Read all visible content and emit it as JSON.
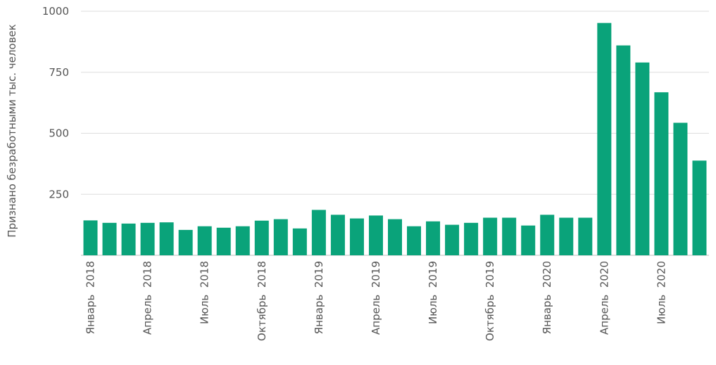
{
  "chart_data": {
    "type": "bar",
    "ylabel": "Признано безработными тыс. человек",
    "ylim": [
      0,
      1000
    ],
    "yticks": [
      250,
      500,
      750,
      1000
    ],
    "grid": true,
    "bar_color": "#0aa37a",
    "categories": [
      "Январь 2018",
      "Февраль 2018",
      "Март 2018",
      "Апрель 2018",
      "Май 2018",
      "Июнь 2018",
      "Июль 2018",
      "Август 2018",
      "Сентябрь 2018",
      "Октябрь 2018",
      "Ноябрь 2018",
      "Декабрь 2018",
      "Январь 2019",
      "Февраль 2019",
      "Март 2019",
      "Апрель 2019",
      "Май 2019",
      "Июнь 2019",
      "Июль 2019",
      "Август 2019",
      "Сентябрь 2019",
      "Октябрь 2019",
      "Ноябрь 2019",
      "Декабрь 2019",
      "Январь 2020",
      "Февраль 2020",
      "Март 2020",
      "Апрель 2020",
      "Май 2020",
      "Июнь 2020",
      "Июль 2020",
      "Август 2020",
      "Сентябрь 2020"
    ],
    "values": [
      143,
      133,
      130,
      133,
      135,
      104,
      119,
      113,
      119,
      142,
      148,
      110,
      186,
      166,
      151,
      163,
      148,
      119,
      139,
      125,
      133,
      154,
      154,
      122,
      166,
      154,
      154,
      952,
      860,
      790,
      668,
      543,
      388
    ],
    "xtick_labels": [
      {
        "index": 0,
        "label": "Январь  2018"
      },
      {
        "index": 3,
        "label": "Апрель  2018"
      },
      {
        "index": 6,
        "label": "Июль  2018"
      },
      {
        "index": 9,
        "label": "Октябрь  2018"
      },
      {
        "index": 12,
        "label": "Январь  2019"
      },
      {
        "index": 15,
        "label": "Апрель  2019"
      },
      {
        "index": 18,
        "label": "Июль  2019"
      },
      {
        "index": 21,
        "label": "Октябрь  2019"
      },
      {
        "index": 24,
        "label": "Январь  2020"
      },
      {
        "index": 27,
        "label": "Апрель  2020"
      },
      {
        "index": 30,
        "label": "Июль  2020"
      }
    ]
  }
}
